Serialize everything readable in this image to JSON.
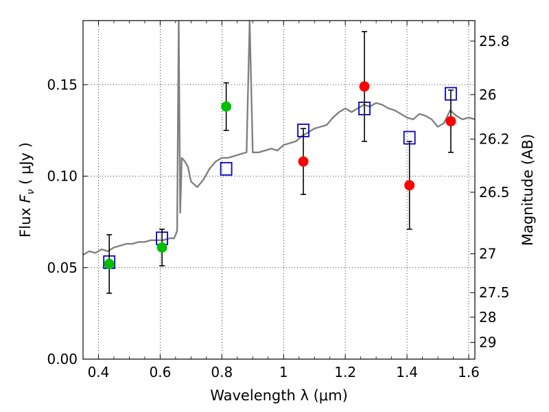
{
  "chart_data": {
    "type": "scatter",
    "title": "",
    "xlabel": "Wavelength  λ (μm)",
    "ylabel": "Flux  F_ν  ( μJy )",
    "ylabel_parts": {
      "pre": "Flux  ",
      "sym": "F",
      "sub": "ν",
      "post": "  ( μJy )"
    },
    "y2label": "Magnitude (AB)",
    "xlim": [
      0.35,
      1.62
    ],
    "ylim": [
      0.0,
      0.185
    ],
    "grid": true,
    "x_ticks": [
      {
        "value": 0.4,
        "label": "0.4"
      },
      {
        "value": 0.6,
        "label": "0.6"
      },
      {
        "value": 0.8,
        "label": "0.8"
      },
      {
        "value": 1.0,
        "label": "1"
      },
      {
        "value": 1.2,
        "label": "1.2"
      },
      {
        "value": 1.4,
        "label": "1.4"
      },
      {
        "value": 1.6,
        "label": "1.6"
      }
    ],
    "y_ticks": [
      {
        "value": 0.0,
        "label": "0.00"
      },
      {
        "value": 0.05,
        "label": "0.05"
      },
      {
        "value": 0.1,
        "label": "0.10"
      },
      {
        "value": 0.15,
        "label": "0.15"
      }
    ],
    "y2_ticks": [
      {
        "value": 25.8,
        "label": "25.8"
      },
      {
        "value": 26.0,
        "label": "26"
      },
      {
        "value": 26.2,
        "label": "26.2"
      },
      {
        "value": 26.5,
        "label": "26.5"
      },
      {
        "value": 27.0,
        "label": "27"
      },
      {
        "value": 27.5,
        "label": "27.5"
      },
      {
        "value": 28.0,
        "label": "28"
      },
      {
        "value": 29.0,
        "label": "29"
      }
    ],
    "series": [
      {
        "kind": "errorbar_points",
        "color": "#00c000",
        "points": [
          {
            "x": 0.435,
            "y": 0.052,
            "err": 0.016
          },
          {
            "x": 0.606,
            "y": 0.061,
            "err": 0.01
          },
          {
            "x": 0.814,
            "y": 0.138,
            "err": 0.013
          }
        ]
      },
      {
        "kind": "errorbar_points",
        "color": "#ff0000",
        "points": [
          {
            "x": 1.064,
            "y": 0.108,
            "err": 0.018
          },
          {
            "x": 1.262,
            "y": 0.149,
            "err": 0.03
          },
          {
            "x": 1.408,
            "y": 0.095,
            "err": 0.024
          },
          {
            "x": 1.542,
            "y": 0.13,
            "err": 0.017
          }
        ]
      },
      {
        "kind": "open_squares",
        "color": "#0000cc",
        "points": [
          {
            "x": 0.435,
            "y": 0.053
          },
          {
            "x": 0.606,
            "y": 0.066
          },
          {
            "x": 0.814,
            "y": 0.104
          },
          {
            "x": 1.064,
            "y": 0.125
          },
          {
            "x": 1.262,
            "y": 0.137
          },
          {
            "x": 1.408,
            "y": 0.121
          },
          {
            "x": 1.542,
            "y": 0.145
          }
        ]
      },
      {
        "kind": "spectrum_line",
        "color": "#808080",
        "x": [
          0.35,
          0.37,
          0.39,
          0.41,
          0.43,
          0.45,
          0.47,
          0.49,
          0.51,
          0.53,
          0.55,
          0.57,
          0.59,
          0.61,
          0.63,
          0.645,
          0.655,
          0.66,
          0.665,
          0.67,
          0.68,
          0.69,
          0.7,
          0.72,
          0.74,
          0.76,
          0.78,
          0.8,
          0.82,
          0.84,
          0.86,
          0.88,
          0.89,
          0.9,
          0.92,
          0.94,
          0.96,
          0.98,
          1.0,
          1.02,
          1.04,
          1.06,
          1.08,
          1.1,
          1.12,
          1.14,
          1.16,
          1.18,
          1.2,
          1.22,
          1.24,
          1.26,
          1.28,
          1.3,
          1.32,
          1.34,
          1.36,
          1.38,
          1.4,
          1.42,
          1.44,
          1.46,
          1.48,
          1.5,
          1.52,
          1.54,
          1.56,
          1.58,
          1.6,
          1.62
        ],
        "y": [
          0.057,
          0.059,
          0.058,
          0.06,
          0.059,
          0.061,
          0.062,
          0.063,
          0.063,
          0.064,
          0.064,
          0.065,
          0.065,
          0.065,
          0.066,
          0.066,
          0.07,
          0.185,
          0.08,
          0.11,
          0.108,
          0.105,
          0.097,
          0.094,
          0.098,
          0.104,
          0.108,
          0.11,
          0.11,
          0.111,
          0.112,
          0.113,
          0.185,
          0.113,
          0.113,
          0.114,
          0.115,
          0.114,
          0.117,
          0.118,
          0.119,
          0.122,
          0.124,
          0.126,
          0.127,
          0.128,
          0.132,
          0.135,
          0.137,
          0.135,
          0.137,
          0.139,
          0.138,
          0.14,
          0.139,
          0.137,
          0.136,
          0.134,
          0.132,
          0.131,
          0.134,
          0.133,
          0.131,
          0.127,
          0.129,
          0.136,
          0.133,
          0.131,
          0.132,
          0.131
        ]
      }
    ]
  }
}
